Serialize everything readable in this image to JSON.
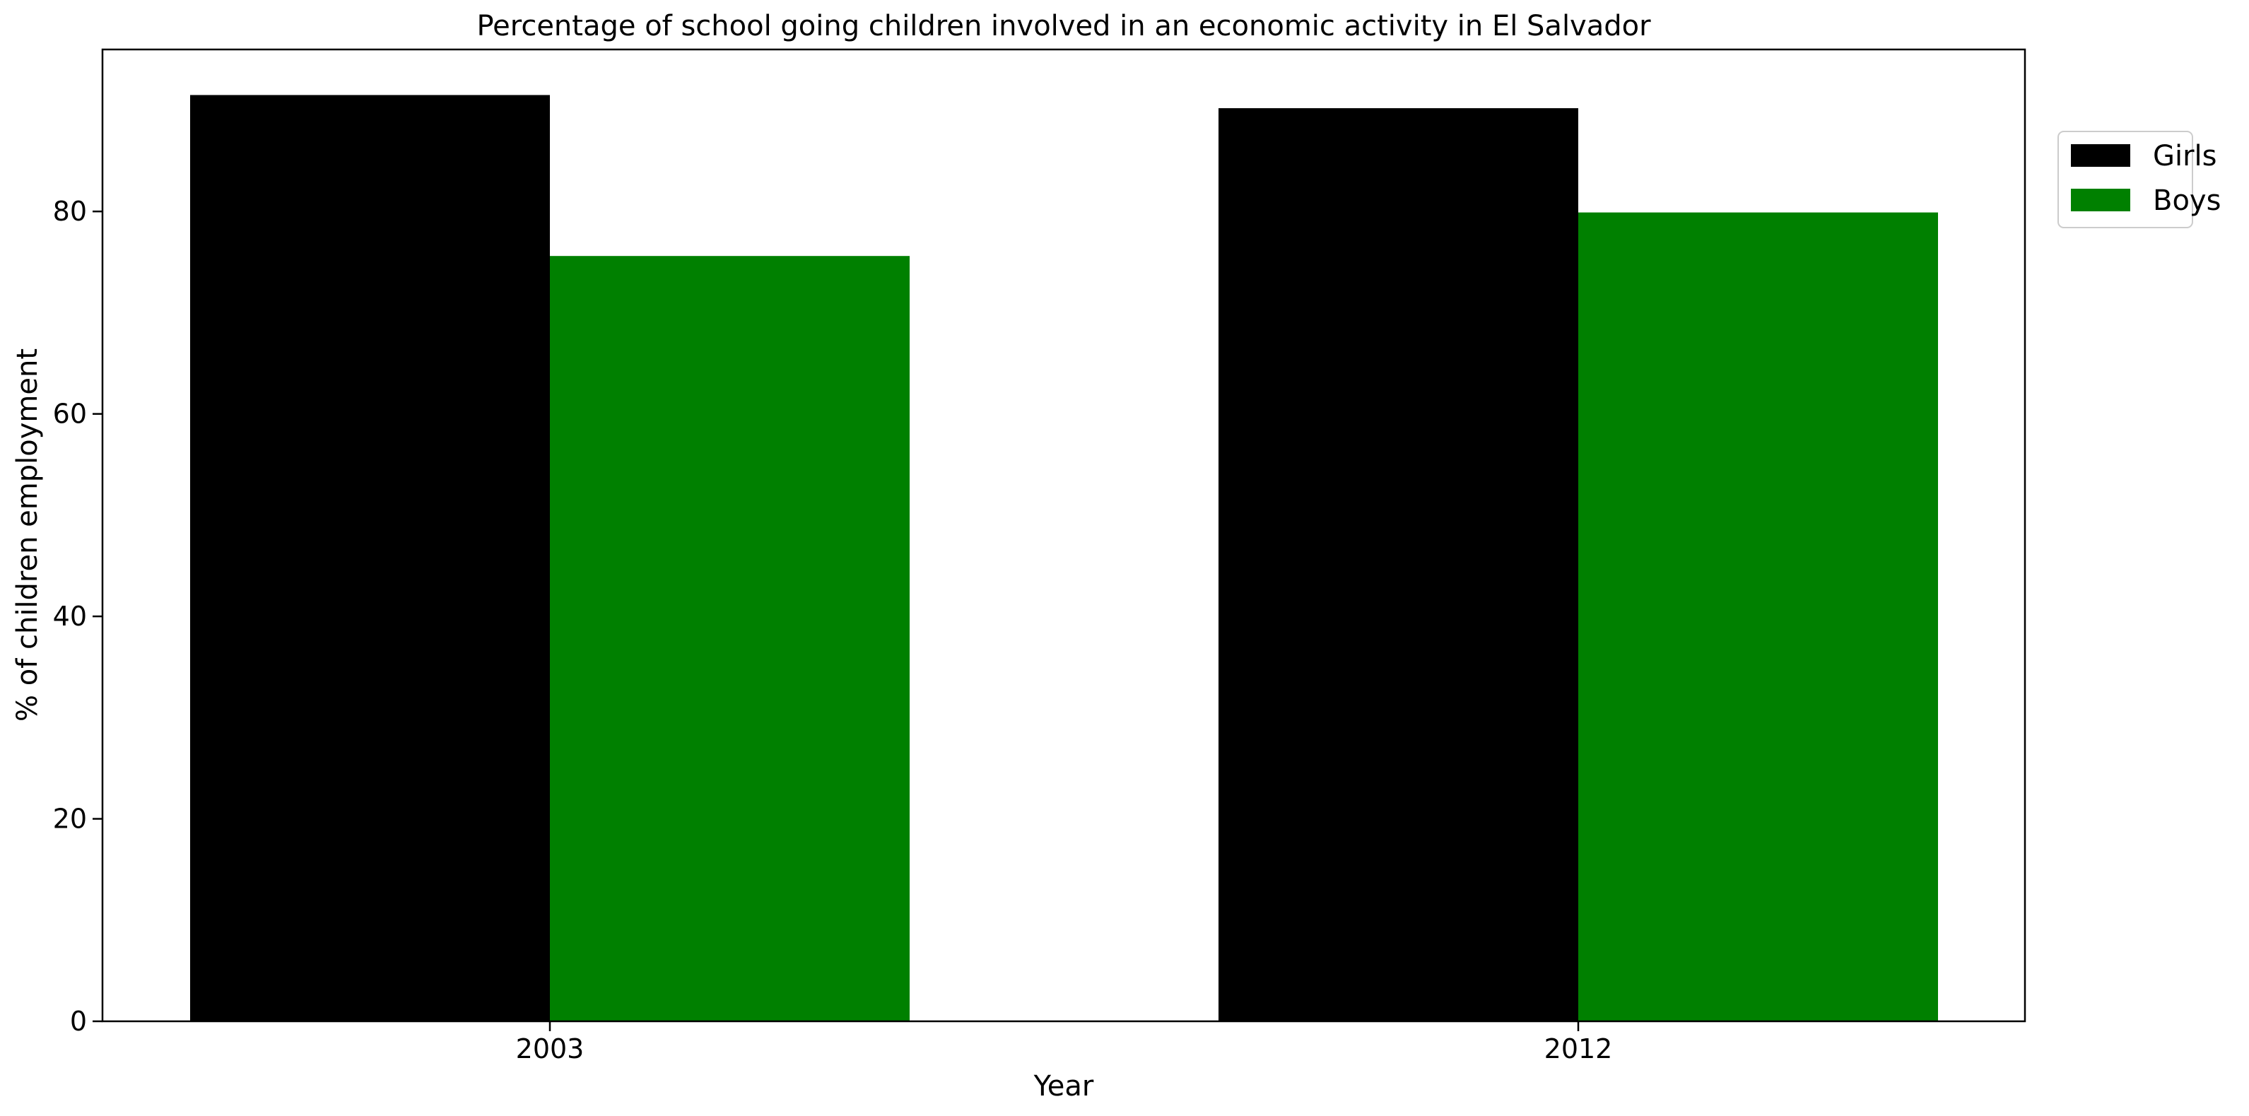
{
  "chart_data": {
    "type": "bar",
    "title": "Percentage of school going children involved in an economic activity in El Salvador",
    "xlabel": "Year",
    "ylabel": "% of children employment",
    "categories": [
      "2003",
      "2012"
    ],
    "series": [
      {
        "name": "Girls",
        "color": "#000000",
        "values": [
          91.5,
          90.2
        ]
      },
      {
        "name": "Boys",
        "color": "#008000",
        "values": [
          75.6,
          79.9
        ]
      }
    ],
    "ylim": [
      0,
      96
    ],
    "yticks": [
      0,
      20,
      40,
      60,
      80
    ],
    "grid": false,
    "legend_position": "top-right (outside plot)"
  }
}
